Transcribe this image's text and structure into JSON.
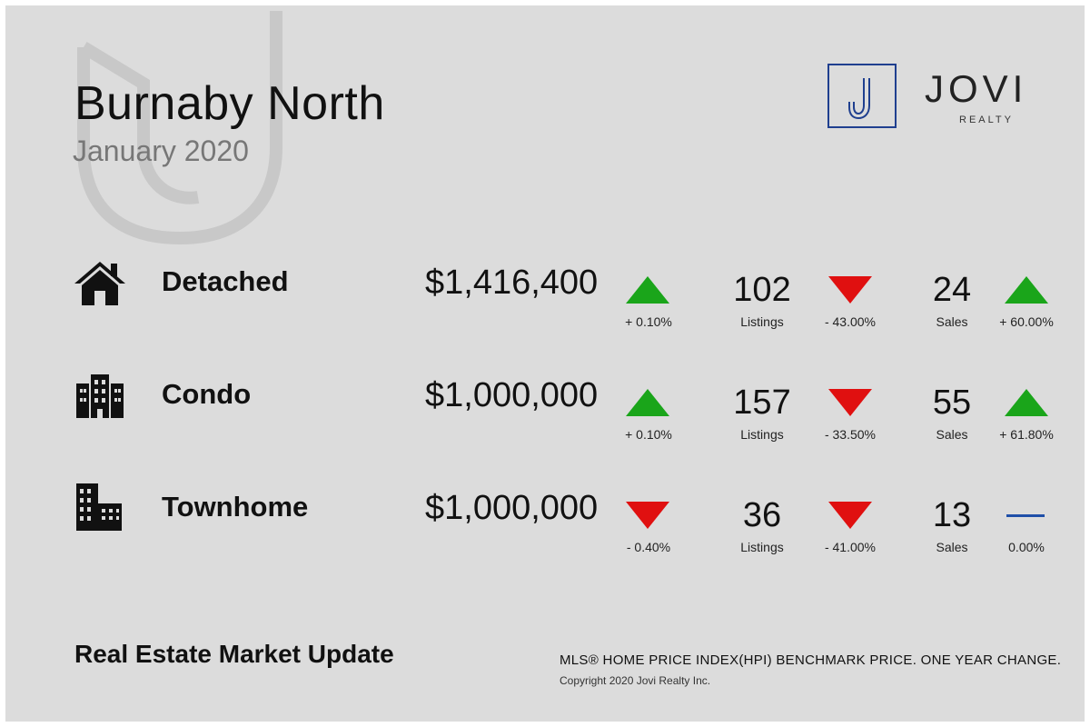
{
  "header": {
    "title": "Burnaby North",
    "subtitle": "January 2020"
  },
  "logo": {
    "mark": "J",
    "name": "JOVI",
    "tagline": "REALTY",
    "color": "#1f3f8f"
  },
  "colors": {
    "up": "#1aa51a",
    "down": "#e01010",
    "flat": "#1f4fa8"
  },
  "rows": [
    {
      "icon": "house-icon",
      "type": "Detached",
      "price": "$1,416,400",
      "price_trend": "up",
      "price_change": "+ 0.10%",
      "listings": "102",
      "listings_label": "Listings",
      "listings_trend": "down",
      "listings_change": "- 43.00%",
      "sales": "24",
      "sales_label": "Sales",
      "sales_trend": "up",
      "sales_change": "+ 60.00%"
    },
    {
      "icon": "condo-building-icon",
      "type": "Condo",
      "price": "$1,000,000",
      "price_trend": "up",
      "price_change": "+ 0.10%",
      "listings": "157",
      "listings_label": "Listings",
      "listings_trend": "down",
      "listings_change": "- 33.50%",
      "sales": "55",
      "sales_label": "Sales",
      "sales_trend": "up",
      "sales_change": "+ 61.80%"
    },
    {
      "icon": "townhome-buildings-icon",
      "type": "Townhome",
      "price": "$1,000,000",
      "price_trend": "down",
      "price_change": "- 0.40%",
      "listings": "36",
      "listings_label": "Listings",
      "listings_trend": "down",
      "listings_change": "- 41.00%",
      "sales": "13",
      "sales_label": "Sales",
      "sales_trend": "flat",
      "sales_change": "0.00%"
    }
  ],
  "footer": {
    "title": "Real Estate Market Update",
    "note": "MLS® HOME PRICE INDEX(HPI) BENCHMARK PRICE. ONE YEAR CHANGE.",
    "copyright": "Copyright 2020 Jovi Realty Inc."
  }
}
